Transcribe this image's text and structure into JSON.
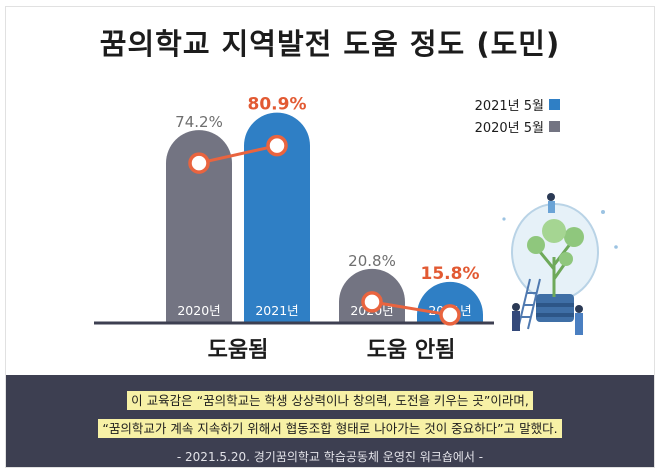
{
  "title": "꿈의학교 지역발전 도움 정도 (도민)",
  "chart_data": {
    "type": "bar",
    "categories": [
      "도움됨",
      "도움 안됨"
    ],
    "series": [
      {
        "name": "2020년 5월",
        "bar_label": "2020년",
        "values": [
          74.2,
          20.8
        ],
        "value_labels": [
          "74.2%",
          "20.8%"
        ],
        "color": "#737482"
      },
      {
        "name": "2021년 5월",
        "bar_label": "2021년",
        "values": [
          80.9,
          15.8
        ],
        "value_labels": [
          "80.9%",
          "15.8%"
        ],
        "color": "#2f7fc5"
      }
    ],
    "connector_color": "#e9643f",
    "value_label_colors": {
      "2020": "#6f6f6f",
      "2021": "#e25a33"
    },
    "legend": [
      "2021년 5월",
      "2020년 5월"
    ],
    "legend_placement": "top-right",
    "ylim": [
      0,
      100
    ],
    "grid": false
  },
  "footer": {
    "quote_line1": "이 교육감은 “꿈의학교는 학생 상상력이나 창의력, 도전을 키우는 곳”이라며,",
    "quote_line2": "“꿈의학교가 계속 지속하기 위해서 협동조합 형태로 나아가는 것이 중요하다”고 말했다.",
    "credit": "- 2021.5.20. 경기꿈의학교 학습공동체 운영진 워크숍에서 -"
  },
  "illustration": {
    "icon": "lightbulb-with-tree-icon"
  }
}
